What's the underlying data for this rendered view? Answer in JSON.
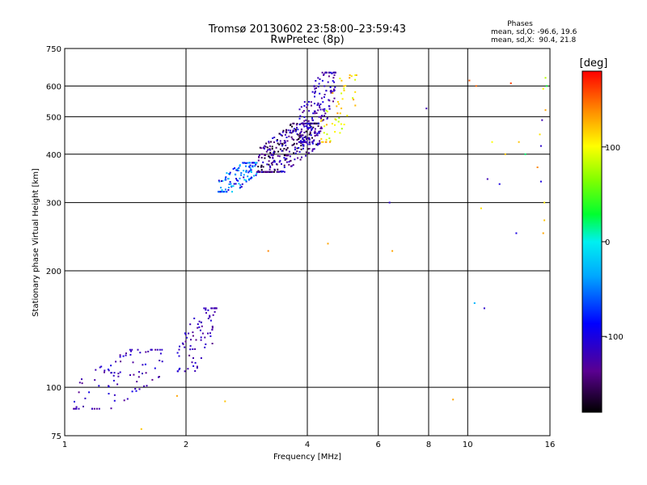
{
  "chart_data": {
    "type": "scatter",
    "title": "Tromsø 20130602 23:58:00–23:59:43",
    "subtitle": "RwPretec (8p)",
    "stats": {
      "heading": "Phases",
      "line_o": "mean, sd,O: -96.6, 19.6",
      "line_x": "mean, sd,X:  90.4, 21.8"
    },
    "xlabel": "Frequency [MHz]",
    "ylabel": "Stationary phase Virtual Height [km]",
    "x_scale": "log",
    "y_scale": "log",
    "xlim": [
      1,
      16
    ],
    "ylim": [
      75,
      750
    ],
    "x_ticks": [
      1,
      2,
      4,
      6,
      8,
      10,
      16
    ],
    "x_tick_labels": [
      "1",
      "2",
      "4",
      "6",
      "8",
      "10",
      "16"
    ],
    "y_ticks": [
      75,
      100,
      200,
      300,
      400,
      500,
      600,
      750
    ],
    "y_tick_labels": [
      "75",
      "100",
      "200",
      "300",
      "400",
      "500",
      "600",
      "750"
    ],
    "grid": true,
    "colorbar": {
      "label": "[deg]",
      "range": [
        -180,
        180
      ],
      "ticks": [
        100,
        0,
        -100
      ],
      "tick_labels": [
        "100",
        "0",
        "-100"
      ]
    },
    "clusters": [
      {
        "x_range": [
          1.05,
          1.75
        ],
        "y_range": [
          88,
          125
        ],
        "phase_range": [
          -140,
          -95
        ],
        "count": 90
      },
      {
        "x_range": [
          1.9,
          2.4
        ],
        "y_range": [
          110,
          160
        ],
        "phase_range": [
          -140,
          -100
        ],
        "count": 80
      },
      {
        "x_range": [
          2.4,
          3.0
        ],
        "y_range": [
          320,
          380
        ],
        "phase_range": [
          -110,
          -10
        ],
        "count": 120
      },
      {
        "x_range": [
          3.0,
          4.3
        ],
        "y_range": [
          360,
          480
        ],
        "phase_range": [
          -175,
          -95
        ],
        "count": 330
      },
      {
        "x_range": [
          3.8,
          4.7
        ],
        "y_range": [
          430,
          650
        ],
        "phase_range": [
          -140,
          -95
        ],
        "count": 170
      },
      {
        "x_range": [
          4.3,
          5.3
        ],
        "y_range": [
          430,
          640
        ],
        "phase_range": [
          70,
          140
        ],
        "count": 55
      }
    ],
    "points": [
      [
        3.2,
        225,
        140
      ],
      [
        4.5,
        235,
        130
      ],
      [
        6.4,
        300,
        -110
      ],
      [
        6.5,
        225,
        130
      ],
      [
        2.5,
        92,
        120
      ],
      [
        1.9,
        95,
        130
      ],
      [
        1.55,
        78,
        120
      ],
      [
        9.2,
        93,
        130
      ],
      [
        7.9,
        525,
        -120
      ],
      [
        10.5,
        600,
        150
      ],
      [
        10.8,
        290,
        110
      ],
      [
        11.5,
        430,
        100
      ],
      [
        11.2,
        345,
        -120
      ],
      [
        12.0,
        335,
        -100
      ],
      [
        12.8,
        610,
        160
      ],
      [
        12.4,
        400,
        120
      ],
      [
        13.2,
        250,
        -100
      ],
      [
        13.4,
        430,
        120
      ],
      [
        13.9,
        400,
        20
      ],
      [
        10.1,
        620,
        155
      ],
      [
        10.4,
        165,
        -30
      ],
      [
        11.0,
        160,
        -110
      ],
      [
        15.2,
        340,
        -100
      ],
      [
        15.3,
        490,
        -120
      ],
      [
        15.5,
        270,
        120
      ],
      [
        15.4,
        590,
        100
      ],
      [
        15.6,
        520,
        130
      ],
      [
        15.1,
        450,
        110
      ],
      [
        15.4,
        250,
        130
      ],
      [
        15.6,
        630,
        80
      ],
      [
        14.9,
        370,
        140
      ],
      [
        15.5,
        300,
        110
      ],
      [
        15.2,
        420,
        -110
      ],
      [
        15.7,
        600,
        30
      ]
    ]
  }
}
